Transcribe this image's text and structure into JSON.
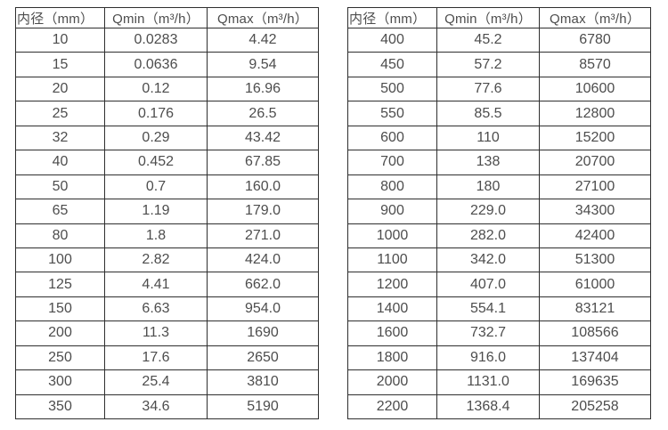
{
  "colors": {
    "border": "#2f2f2f",
    "text": "#4d4d4d",
    "background": "#ffffff"
  },
  "tables": [
    {
      "name": "flow-spec-small-diameters",
      "headers": [
        "内径（mm）",
        "Qmin（m³/h）",
        "Qmax（m³/h）"
      ],
      "rows": [
        [
          "10",
          "0.0283",
          "4.42"
        ],
        [
          "15",
          "0.0636",
          "9.54"
        ],
        [
          "20",
          "0.12",
          "16.96"
        ],
        [
          "25",
          "0.176",
          "26.5"
        ],
        [
          "32",
          "0.29",
          "43.42"
        ],
        [
          "40",
          "0.452",
          "67.85"
        ],
        [
          "50",
          "0.7",
          "160.0"
        ],
        [
          "65",
          "1.19",
          "179.0"
        ],
        [
          "80",
          "1.8",
          "271.0"
        ],
        [
          "100",
          "2.82",
          "424.0"
        ],
        [
          "125",
          "4.41",
          "662.0"
        ],
        [
          "150",
          "6.63",
          "954.0"
        ],
        [
          "200",
          "11.3",
          "1690"
        ],
        [
          "250",
          "17.6",
          "2650"
        ],
        [
          "300",
          "25.4",
          "3810"
        ],
        [
          "350",
          "34.6",
          "5190"
        ]
      ]
    },
    {
      "name": "flow-spec-large-diameters",
      "headers": [
        "内径（mm）",
        "Qmin（m³/h）",
        "Qmax（m³/h）"
      ],
      "rows": [
        [
          "400",
          "45.2",
          "6780"
        ],
        [
          "450",
          "57.2",
          "8570"
        ],
        [
          "500",
          "77.6",
          "10600"
        ],
        [
          "550",
          "85.5",
          "12800"
        ],
        [
          "600",
          "110",
          "15200"
        ],
        [
          "700",
          "138",
          "20700"
        ],
        [
          "800",
          "180",
          "27100"
        ],
        [
          "900",
          "229.0",
          "34300"
        ],
        [
          "1000",
          "282.0",
          "42400"
        ],
        [
          "1100",
          "342.0",
          "51300"
        ],
        [
          "1200",
          "407.0",
          "61000"
        ],
        [
          "1400",
          "554.1",
          "83121"
        ],
        [
          "1600",
          "732.7",
          "108566"
        ],
        [
          "1800",
          "916.0",
          "137404"
        ],
        [
          "2000",
          "1131.0",
          "169635"
        ],
        [
          "2200",
          "1368.4",
          "205258"
        ]
      ]
    }
  ]
}
